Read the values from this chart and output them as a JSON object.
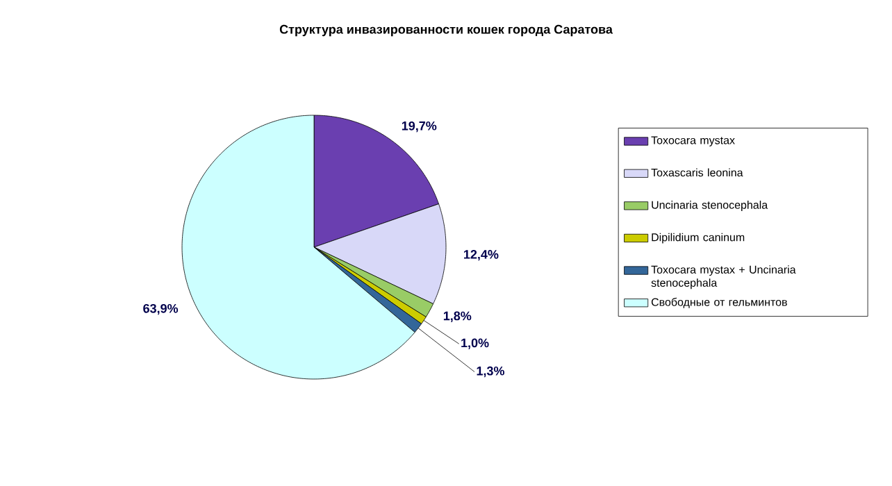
{
  "chart_data": {
    "type": "pie",
    "title": "Структура инвазированности кошек города Саратова",
    "categories": [
      "Toxocara mystax",
      "Toxascaris leonina",
      "Uncinaria stenocephala",
      "Dipilidium caninum",
      "Toxocara mystax + Uncinaria stenocephala",
      "Свободные от гельминтов"
    ],
    "values": [
      19.7,
      12.4,
      1.8,
      1.0,
      1.3,
      63.9
    ],
    "value_labels": [
      "19,7%",
      "12,4%",
      "1,8%",
      "1,0%",
      "1,3%",
      "63,9%"
    ],
    "colors": [
      "#6a3fb0",
      "#d8d8f8",
      "#99cc66",
      "#cccc00",
      "#336699",
      "#ccffff"
    ],
    "legend": "right"
  }
}
